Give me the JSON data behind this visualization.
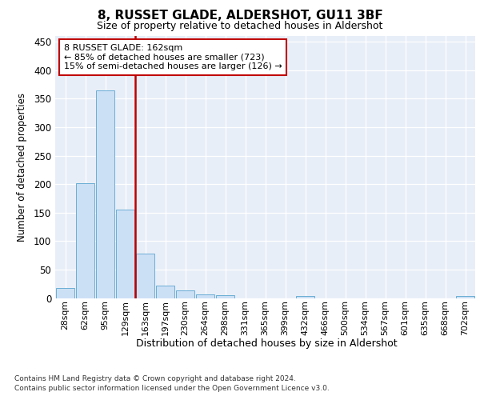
{
  "title": "8, RUSSET GLADE, ALDERSHOT, GU11 3BF",
  "subtitle": "Size of property relative to detached houses in Aldershot",
  "xlabel": "Distribution of detached houses by size in Aldershot",
  "ylabel": "Number of detached properties",
  "categories": [
    "28sqm",
    "62sqm",
    "95sqm",
    "129sqm",
    "163sqm",
    "197sqm",
    "230sqm",
    "264sqm",
    "298sqm",
    "331sqm",
    "365sqm",
    "399sqm",
    "432sqm",
    "466sqm",
    "500sqm",
    "534sqm",
    "567sqm",
    "601sqm",
    "635sqm",
    "668sqm",
    "702sqm"
  ],
  "values": [
    18,
    202,
    365,
    155,
    78,
    22,
    14,
    7,
    5,
    0,
    0,
    0,
    4,
    0,
    0,
    0,
    0,
    0,
    0,
    0,
    4
  ],
  "bar_color": "#cce0f5",
  "bar_edge_color": "#6aaed6",
  "vline_index": 4,
  "vline_color": "#c00000",
  "annotation_text": "8 RUSSET GLADE: 162sqm\n← 85% of detached houses are smaller (723)\n15% of semi-detached houses are larger (126) →",
  "annotation_box_color": "#ffffff",
  "annotation_box_edge_color": "#c00000",
  "ylim": [
    0,
    460
  ],
  "yticks": [
    0,
    50,
    100,
    150,
    200,
    250,
    300,
    350,
    400,
    450
  ],
  "background_color": "#e8eef7",
  "footer_line1": "Contains HM Land Registry data © Crown copyright and database right 2024.",
  "footer_line2": "Contains public sector information licensed under the Open Government Licence v3.0."
}
